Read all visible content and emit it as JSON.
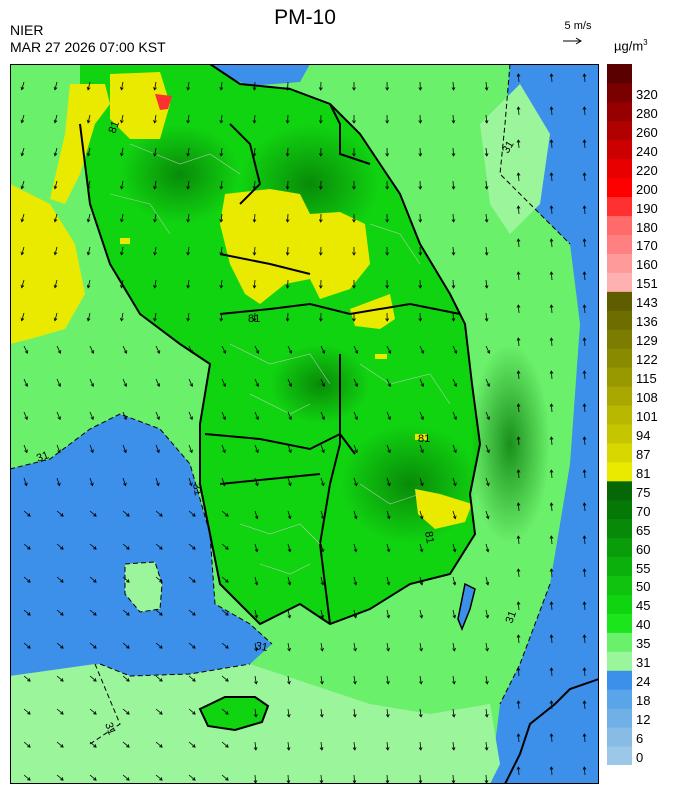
{
  "header": {
    "agency": "NIER",
    "datetime": "MAR 27 2026 07:00 KST",
    "title": "PM-10"
  },
  "wind_vector": {
    "label": "5 m/s",
    "arrow_glyph": "→"
  },
  "units": {
    "base": "µg/m",
    "exponent": "3"
  },
  "legend": {
    "bins": [
      {
        "label": "0",
        "color": "#9cc8e8"
      },
      {
        "label": "6",
        "color": "#88bce4"
      },
      {
        "label": "12",
        "color": "#6fb0e6"
      },
      {
        "label": "18",
        "color": "#5aa4ea"
      },
      {
        "label": "24",
        "color": "#3d90ea"
      },
      {
        "label": "31",
        "color": "#9bf59b"
      },
      {
        "label": "35",
        "color": "#6bf06b"
      },
      {
        "label": "40",
        "color": "#1ce51c"
      },
      {
        "label": "45",
        "color": "#11d411"
      },
      {
        "label": "50",
        "color": "#0fc30f"
      },
      {
        "label": "55",
        "color": "#0cb00c"
      },
      {
        "label": "60",
        "color": "#0a9d0a"
      },
      {
        "label": "65",
        "color": "#088a08"
      },
      {
        "label": "70",
        "color": "#067806"
      },
      {
        "label": "75",
        "color": "#056705"
      },
      {
        "label": "81",
        "color": "#eaea00"
      },
      {
        "label": "87",
        "color": "#d8d800"
      },
      {
        "label": "94",
        "color": "#c6c600"
      },
      {
        "label": "101",
        "color": "#b8b800"
      },
      {
        "label": "108",
        "color": "#a8a800"
      },
      {
        "label": "115",
        "color": "#989800"
      },
      {
        "label": "122",
        "color": "#8a8a00"
      },
      {
        "label": "129",
        "color": "#7c7c00"
      },
      {
        "label": "136",
        "color": "#6e6e00"
      },
      {
        "label": "143",
        "color": "#5e5e00"
      },
      {
        "label": "151",
        "color": "#ffb0b0"
      },
      {
        "label": "160",
        "color": "#ff9a9a"
      },
      {
        "label": "170",
        "color": "#ff8080"
      },
      {
        "label": "180",
        "color": "#ff6a6a"
      },
      {
        "label": "190",
        "color": "#ff3030"
      },
      {
        "label": "200",
        "color": "#ff0000"
      },
      {
        "label": "220",
        "color": "#e80000"
      },
      {
        "label": "240",
        "color": "#cc0000"
      },
      {
        "label": "260",
        "color": "#b00000"
      },
      {
        "label": "280",
        "color": "#960000"
      },
      {
        "label": "320",
        "color": "#7a0000"
      },
      {
        "label": "",
        "color": "#5a0000"
      }
    ]
  },
  "map": {
    "contour_labels": [
      "31",
      "31",
      "31",
      "31",
      "31",
      "31",
      "81",
      "81",
      "81",
      "81"
    ]
  }
}
